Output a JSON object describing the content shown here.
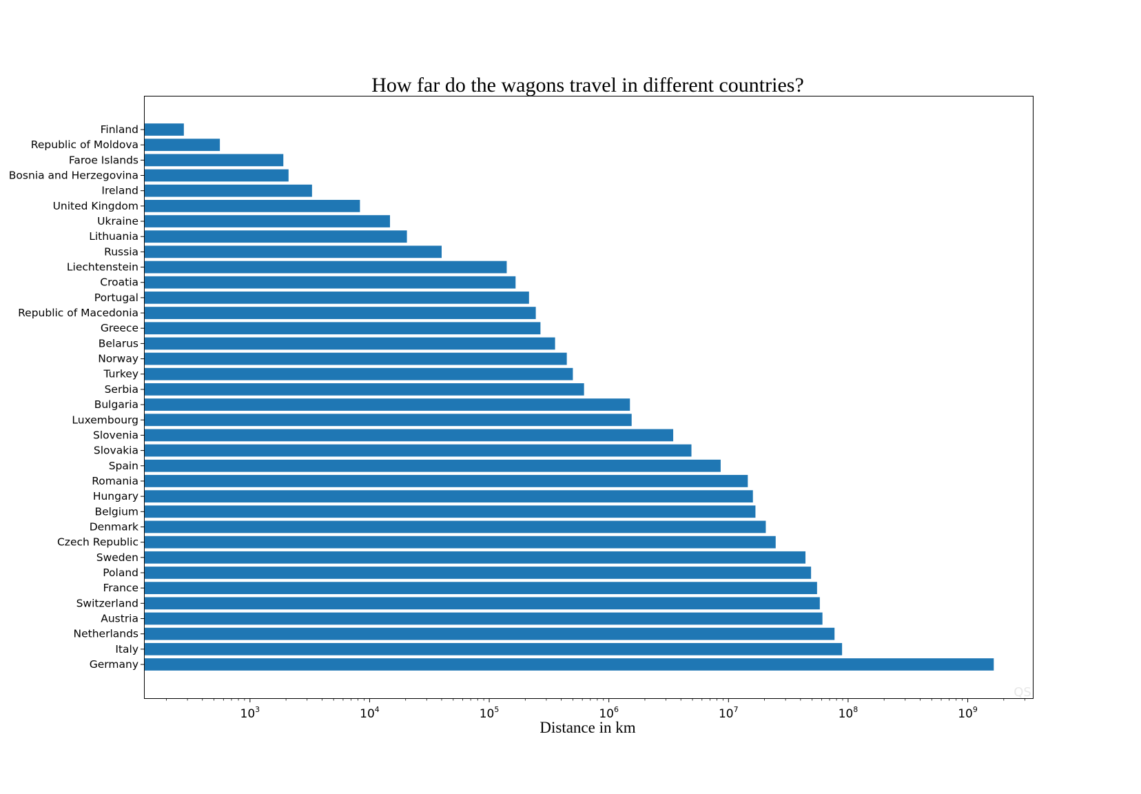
{
  "chart_data": {
    "type": "bar",
    "orientation": "horizontal",
    "title": "How far do the wagons travel in different countries?",
    "xlabel": "Distance in km",
    "ylabel": "",
    "xscale": "log",
    "xlim": [
      130,
      3500000000
    ],
    "x_tick_labels": [
      {
        "value": 1000,
        "base": "10",
        "exp": "3"
      },
      {
        "value": 10000,
        "base": "10",
        "exp": "4"
      },
      {
        "value": 100000,
        "base": "10",
        "exp": "5"
      },
      {
        "value": 1000000,
        "base": "10",
        "exp": "6"
      },
      {
        "value": 10000000,
        "base": "10",
        "exp": "7"
      },
      {
        "value": 100000000,
        "base": "10",
        "exp": "8"
      },
      {
        "value": 1000000000,
        "base": "10",
        "exp": "9"
      }
    ],
    "grid": false,
    "bar_color": "#1f77b4",
    "categories": [
      "Finland",
      "Republic of Moldova",
      "Faroe Islands",
      "Bosnia and Herzegovina",
      "Ireland",
      "United Kingdom",
      "Ukraine",
      "Lithuania",
      "Russia",
      "Liechtenstein",
      "Croatia",
      "Portugal",
      "Republic of Macedonia",
      "Greece",
      "Belarus",
      "Norway",
      "Turkey",
      "Serbia",
      "Bulgaria",
      "Luxembourg",
      "Slovenia",
      "Slovakia",
      "Spain",
      "Romania",
      "Hungary",
      "Belgium",
      "Denmark",
      "Czech Republic",
      "Sweden",
      "Poland",
      "France",
      "Switzerland",
      "Austria",
      "Netherlands",
      "Italy",
      "Germany"
    ],
    "values": [
      280,
      560,
      1900,
      2100,
      3300,
      8300,
      14800,
      20500,
      40000,
      140000,
      166000,
      215000,
      245000,
      268000,
      355000,
      445000,
      500000,
      620000,
      1500000,
      1550000,
      3450000,
      4900000,
      8600000,
      14500000,
      16000000,
      16800000,
      20500000,
      24800000,
      44000000,
      49000000,
      55000000,
      58000000,
      61000000,
      77000000,
      89000000,
      1650000000
    ]
  },
  "watermark": "QS"
}
